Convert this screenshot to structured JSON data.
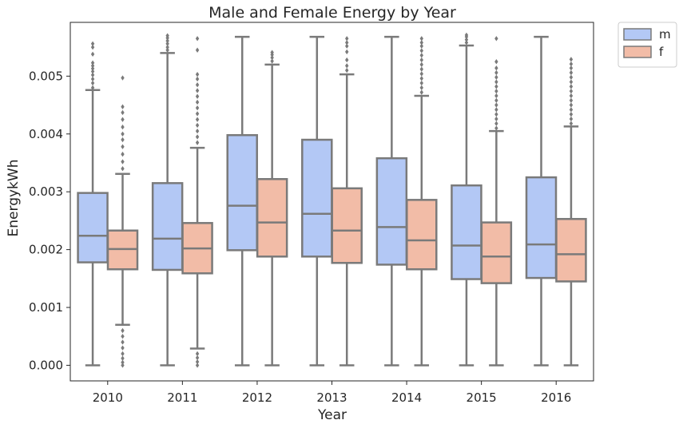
{
  "chart_data": {
    "type": "box",
    "title": "Male and Female Energy by Year",
    "xlabel": "Year",
    "ylabel": "EnergykWh",
    "ylim": [
      -0.00027,
      0.00593
    ],
    "yticks": [
      0.0,
      0.001,
      0.002,
      0.003,
      0.004,
      0.005
    ],
    "ytick_labels": [
      "0.000",
      "0.001",
      "0.002",
      "0.003",
      "0.004",
      "0.005"
    ],
    "categories": [
      "2010",
      "2011",
      "2012",
      "2013",
      "2014",
      "2015",
      "2016"
    ],
    "legend": {
      "position": "outside-top-right"
    },
    "colors": {
      "m": "#b3c8f5",
      "f": "#f2bca7",
      "line": "#7a7a7a",
      "frame": "#262626"
    },
    "series": [
      {
        "name": "m",
        "boxes": [
          {
            "min": 0.0,
            "q1": 0.00178,
            "median": 0.00224,
            "q3": 0.00298,
            "max": 0.00476,
            "outliers": [
              0.0048,
              0.00488,
              0.00495,
              0.00502,
              0.00508,
              0.00513,
              0.00518,
              0.00523,
              0.00538,
              0.0055,
              0.00556
            ]
          },
          {
            "min": 0.0,
            "q1": 0.00165,
            "median": 0.00219,
            "q3": 0.00315,
            "max": 0.0054,
            "outliers": [
              0.00545,
              0.0055,
              0.00556,
              0.00561,
              0.00566,
              0.0057
            ]
          },
          {
            "min": 0.0,
            "q1": 0.00199,
            "median": 0.00276,
            "q3": 0.00398,
            "max": 0.00568,
            "outliers": []
          },
          {
            "min": 0.0,
            "q1": 0.00188,
            "median": 0.00262,
            "q3": 0.0039,
            "max": 0.00568,
            "outliers": []
          },
          {
            "min": 0.0,
            "q1": 0.00174,
            "median": 0.00239,
            "q3": 0.00358,
            "max": 0.00568,
            "outliers": []
          },
          {
            "min": 0.0,
            "q1": 0.00149,
            "median": 0.00207,
            "q3": 0.00311,
            "max": 0.00553,
            "outliers": [
              0.00558,
              0.00563,
              0.00568,
              0.00571
            ]
          },
          {
            "min": 0.0,
            "q1": 0.00151,
            "median": 0.00209,
            "q3": 0.00325,
            "max": 0.00568,
            "outliers": []
          }
        ]
      },
      {
        "name": "f",
        "boxes": [
          {
            "min": 0.0007,
            "q1": 0.00166,
            "median": 0.00201,
            "q3": 0.00233,
            "max": 0.00331,
            "outliers": [
              0.0,
              5e-05,
              0.00012,
              0.0002,
              0.0003,
              0.0004,
              0.0005,
              0.0006,
              0.0034,
              0.00352,
              0.00365,
              0.00378,
              0.0039,
              0.004,
              0.00412,
              0.00425,
              0.00437,
              0.00447,
              0.00497
            ]
          },
          {
            "min": 0.00029,
            "q1": 0.00159,
            "median": 0.00202,
            "q3": 0.00246,
            "max": 0.00376,
            "outliers": [
              0.0,
              6e-05,
              0.00013,
              0.0002,
              0.00385,
              0.00395,
              0.00405,
              0.00415,
              0.00425,
              0.00435,
              0.00445,
              0.00455,
              0.00465,
              0.00475,
              0.00485,
              0.00495,
              0.00503,
              0.00545,
              0.00565
            ]
          },
          {
            "min": 0.0,
            "q1": 0.00188,
            "median": 0.00247,
            "q3": 0.00322,
            "max": 0.0052,
            "outliers": [
              0.00526,
              0.00532,
              0.00537,
              0.00541
            ]
          },
          {
            "min": 0.0,
            "q1": 0.00177,
            "median": 0.00233,
            "q3": 0.00306,
            "max": 0.00503,
            "outliers": [
              0.0051,
              0.00518,
              0.00528,
              0.00542,
              0.00552,
              0.00558,
              0.00565
            ]
          },
          {
            "min": 0.0,
            "q1": 0.00166,
            "median": 0.00216,
            "q3": 0.00286,
            "max": 0.00466,
            "outliers": [
              0.00472,
              0.0048,
              0.00488,
              0.00496,
              0.00504,
              0.00512,
              0.0052,
              0.00528,
              0.00536,
              0.00544,
              0.00552,
              0.00558,
              0.00565
            ]
          },
          {
            "min": 0.0,
            "q1": 0.00142,
            "median": 0.00188,
            "q3": 0.00247,
            "max": 0.00405,
            "outliers": [
              0.0041,
              0.00418,
              0.00426,
              0.00434,
              0.00442,
              0.0045,
              0.00458,
              0.00466,
              0.00474,
              0.00482,
              0.0049,
              0.00498,
              0.00506,
              0.00514,
              0.00525,
              0.00565
            ]
          },
          {
            "min": 0.0,
            "q1": 0.00145,
            "median": 0.00192,
            "q3": 0.00253,
            "max": 0.00413,
            "outliers": [
              0.00418,
              0.00426,
              0.00434,
              0.00442,
              0.0045,
              0.00458,
              0.00466,
              0.00474,
              0.00482,
              0.0049,
              0.00498,
              0.00506,
              0.00514,
              0.00521,
              0.00529
            ]
          }
        ]
      }
    ]
  }
}
